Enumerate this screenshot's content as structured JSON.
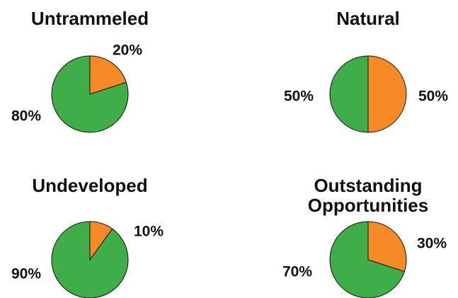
{
  "chart_data": [
    {
      "type": "pie",
      "title": "Untrammeled",
      "values": [
        20,
        80
      ],
      "value_labels": [
        "20%",
        "80%"
      ],
      "colors": [
        "#f58a26",
        "#3fae49"
      ]
    },
    {
      "type": "pie",
      "title": "Natural",
      "values": [
        50,
        50
      ],
      "value_labels": [
        "50%",
        "50%"
      ],
      "colors": [
        "#f58a26",
        "#3fae49"
      ]
    },
    {
      "type": "pie",
      "title": "Undeveloped",
      "values": [
        10,
        90
      ],
      "value_labels": [
        "10%",
        "90%"
      ],
      "colors": [
        "#f58a26",
        "#3fae49"
      ]
    },
    {
      "type": "pie",
      "title": "Outstanding Opportunities",
      "values": [
        30,
        70
      ],
      "value_labels": [
        "30%",
        "70%"
      ],
      "colors": [
        "#f58a26",
        "#3fae49"
      ]
    }
  ]
}
